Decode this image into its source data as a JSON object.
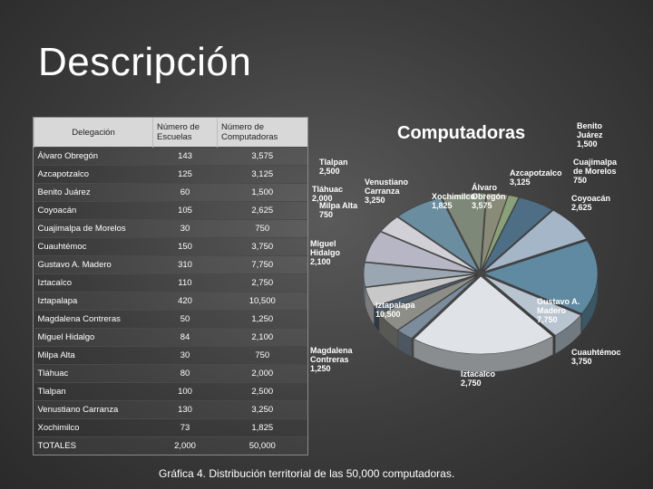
{
  "slide": {
    "title": "Descripción",
    "caption": "Gráfica 4. Distribución territorial de las 50,000 computadoras."
  },
  "table": {
    "headers": [
      "Delegación",
      "Número de Escuelas",
      "Número de Computadoras"
    ],
    "rows": [
      [
        "Álvaro Obregón",
        "143",
        "3,575"
      ],
      [
        "Azcapotzalco",
        "125",
        "3,125"
      ],
      [
        "Benito Juárez",
        "60",
        "1,500"
      ],
      [
        "Coyoacán",
        "105",
        "2,625"
      ],
      [
        "Cuajimalpa de Morelos",
        "30",
        "750"
      ],
      [
        "Cuauhtémoc",
        "150",
        "3,750"
      ],
      [
        "Gustavo A. Madero",
        "310",
        "7,750"
      ],
      [
        "Iztacalco",
        "110",
        "2,750"
      ],
      [
        "Iztapalapa",
        "420",
        "10,500"
      ],
      [
        "Magdalena Contreras",
        "50",
        "1,250"
      ],
      [
        "Miguel Hidalgo",
        "84",
        "2,100"
      ],
      [
        "Milpa Alta",
        "30",
        "750"
      ],
      [
        "Tláhuac",
        "80",
        "2,000"
      ],
      [
        "Tlalpan",
        "100",
        "2,500"
      ],
      [
        "Venustiano Carranza",
        "130",
        "3,250"
      ],
      [
        "Xochimilco",
        "73",
        "1,825"
      ],
      [
        "TOTALES",
        "2,000",
        "50,000"
      ]
    ]
  },
  "chart_data": {
    "type": "pie",
    "title": "Computadoras",
    "slices": [
      {
        "name": "Benito Juárez",
        "value": 1500,
        "label": [
          "Benito",
          "Juárez",
          "1,500"
        ],
        "color": "#8a8a78"
      },
      {
        "name": "Cuajimalpa de Morelos",
        "value": 750,
        "label": [
          "Cuajimalpa",
          "de Morelos",
          "750"
        ],
        "color": "#8aa078"
      },
      {
        "name": "Coyoacán",
        "value": 2625,
        "label": [
          "Coyoacán",
          "2,625"
        ],
        "color": "#4e6e86"
      },
      {
        "name": "Cuauhtémoc",
        "value": 3750,
        "label": [
          "Cuauhtémoc",
          "3,750"
        ],
        "color": "#a4b6c8"
      },
      {
        "name": "Gustavo A. Madero",
        "value": 7750,
        "label": [
          "Gustavo A.",
          "Madero",
          "7,750"
        ],
        "color": "#5f8aa2"
      },
      {
        "name": "Iztacalco",
        "value": 2750,
        "label": [
          "Iztacalco",
          "2,750"
        ],
        "color": "#b8c4d0"
      },
      {
        "name": "Iztapalapa",
        "value": 10500,
        "label": [
          "Iztapalapa",
          "10,500"
        ],
        "color": "#dfe3e8"
      },
      {
        "name": "Magdalena Contreras",
        "value": 1250,
        "label": [
          "Magdalena",
          "Contreras",
          "1,250"
        ],
        "color": "#7c8c9c"
      },
      {
        "name": "Miguel Hidalgo",
        "value": 2100,
        "label": [
          "Miguel",
          "Hidalgo",
          "2,100"
        ],
        "color": "#8e8e88"
      },
      {
        "name": "Milpa Alta",
        "value": 750,
        "label": [
          "Milpa Alta",
          "750"
        ],
        "color": "#4e5c6c"
      },
      {
        "name": "Tláhuac",
        "value": 2000,
        "label": [
          "Tláhuac",
          "2,000"
        ],
        "color": "#c8c8c8"
      },
      {
        "name": "Tlalpan",
        "value": 2500,
        "label": [
          "Tlalpan",
          "2,500"
        ],
        "color": "#9aa6b2"
      },
      {
        "name": "Venustiano Carranza",
        "value": 3250,
        "label": [
          "Venustiano",
          "Carranza",
          "3,250"
        ],
        "color": "#b6b6c4"
      },
      {
        "name": "Xochimilco",
        "value": 1825,
        "label": [
          "Xochimilco",
          "1,825"
        ],
        "color": "#d0d0d6"
      },
      {
        "name": "Álvaro Obregón",
        "value": 3575,
        "label": [
          "Álvaro",
          "Obregón",
          "3,575"
        ],
        "color": "#6a8ea0"
      },
      {
        "name": "Azcapotzalco",
        "value": 3125,
        "label": [
          "Azcapotzalco",
          "3,125"
        ],
        "color": "#7e8878"
      }
    ]
  }
}
